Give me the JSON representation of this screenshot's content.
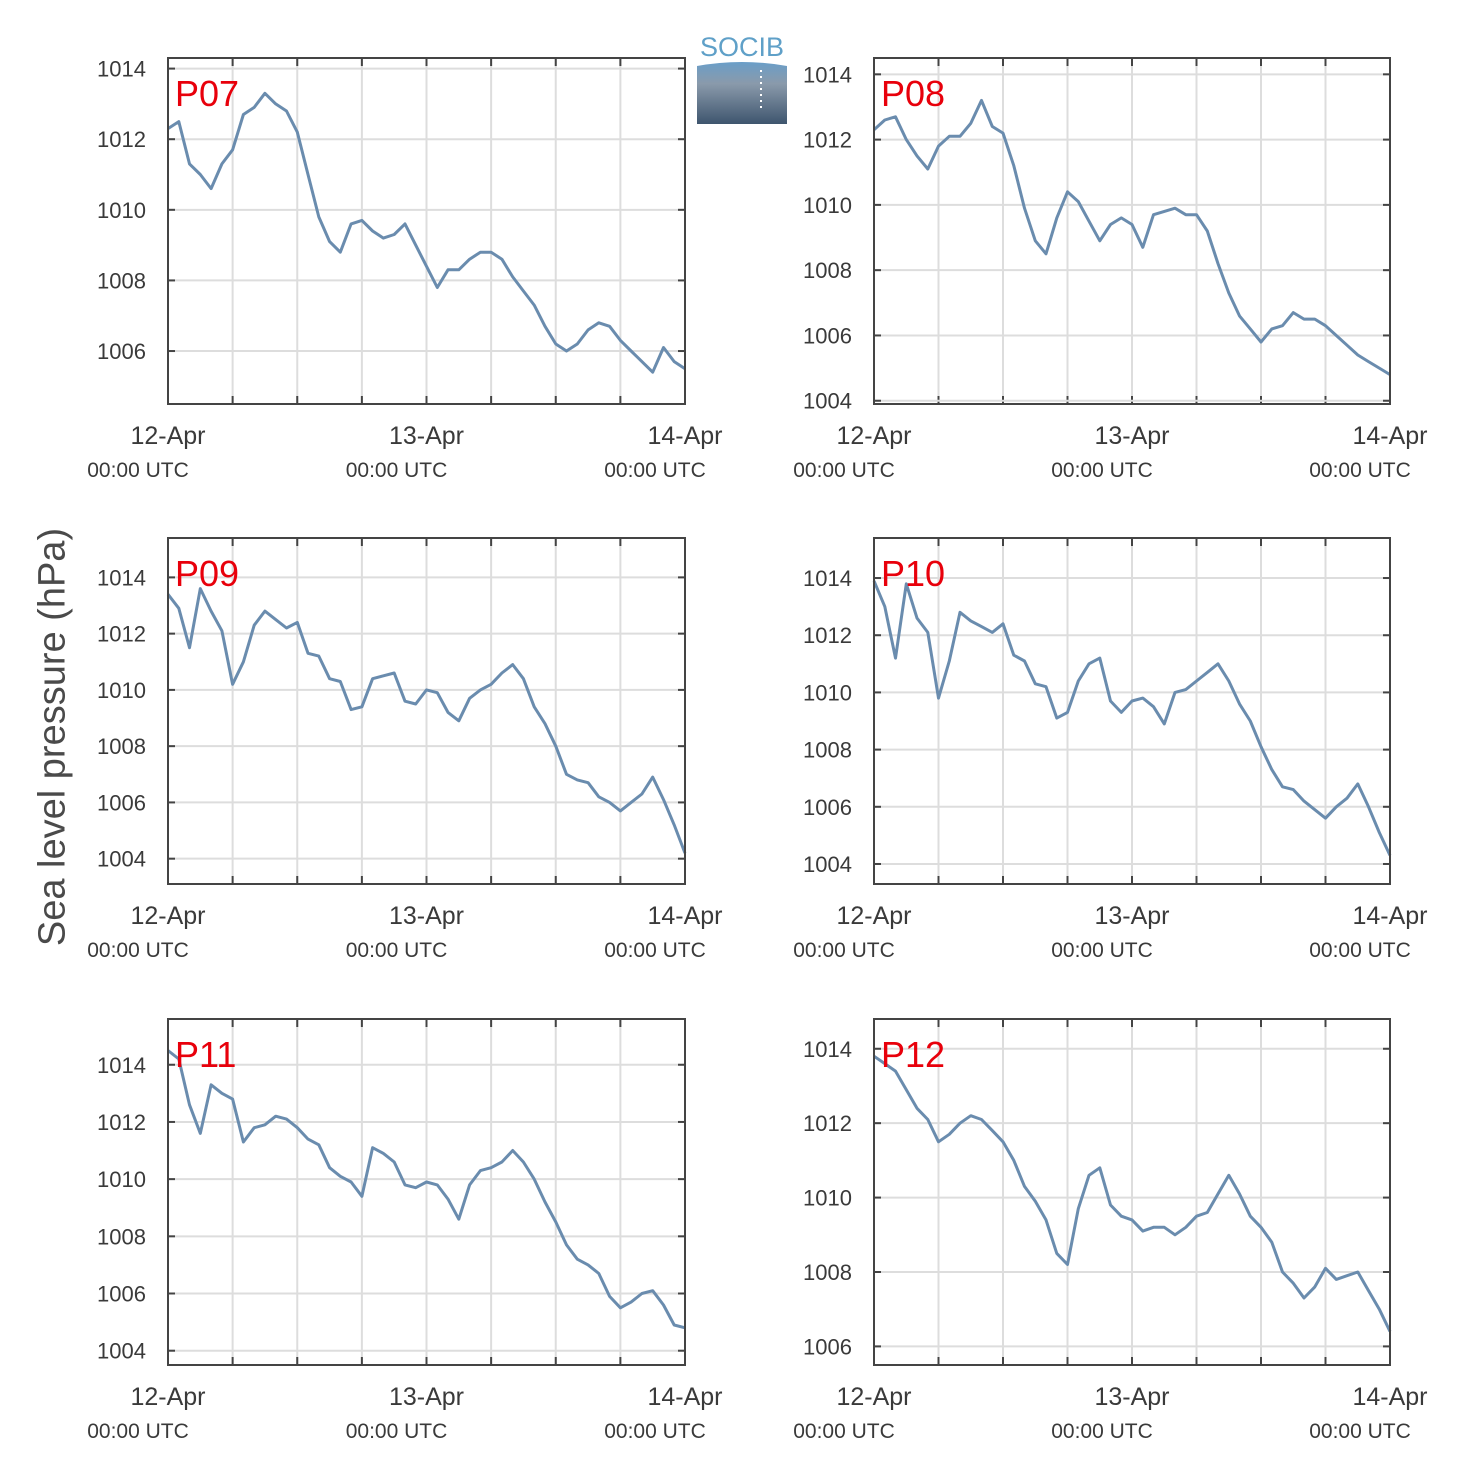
{
  "ylabel": "Sea level pressure (hPa)",
  "logo_text": "SOCIB",
  "colors": {
    "series": "#6a8cae",
    "label": "#e8000b",
    "grid": "#dddddd",
    "axis": "#444444"
  },
  "chart_data": [
    {
      "type": "line",
      "label": "P07",
      "x_ticks": [
        {
          "date": "12-Apr",
          "time": "00:00 UTC"
        },
        {
          "date": "13-Apr",
          "time": "00:00 UTC"
        },
        {
          "date": "14-Apr",
          "time": "00:00 UTC"
        }
      ],
      "ylim": [
        1004.5,
        1014.3
      ],
      "yticks": [
        1006,
        1008,
        1010,
        1012,
        1014
      ],
      "x_hours": [
        0,
        1,
        2,
        3,
        4,
        5,
        6,
        7,
        8,
        9,
        10,
        11,
        12,
        13,
        14,
        15,
        16,
        17,
        18,
        19,
        20,
        21,
        22,
        23,
        24,
        25,
        26,
        27,
        28,
        29,
        30,
        31,
        32,
        33,
        34,
        35,
        36,
        37,
        38,
        39,
        40,
        41,
        42,
        43,
        44,
        45,
        46,
        47,
        48
      ],
      "values": [
        1012.3,
        1012.5,
        1011.3,
        1011.0,
        1010.6,
        1011.3,
        1011.7,
        1012.7,
        1012.9,
        1013.3,
        1013.0,
        1012.8,
        1012.2,
        1011.0,
        1009.8,
        1009.1,
        1008.8,
        1009.6,
        1009.7,
        1009.4,
        1009.2,
        1009.3,
        1009.6,
        1009.0,
        1008.4,
        1007.8,
        1008.3,
        1008.3,
        1008.6,
        1008.8,
        1008.8,
        1008.6,
        1008.1,
        1007.7,
        1007.3,
        1006.7,
        1006.2,
        1006.0,
        1006.2,
        1006.6,
        1006.8,
        1006.7,
        1006.3,
        1006.0,
        1005.7,
        1005.4,
        1006.1,
        1005.7,
        1005.5
      ]
    },
    {
      "type": "line",
      "label": "P08",
      "x_ticks": [
        {
          "date": "12-Apr",
          "time": "00:00 UTC"
        },
        {
          "date": "13-Apr",
          "time": "00:00 UTC"
        },
        {
          "date": "14-Apr",
          "time": "00:00 UTC"
        }
      ],
      "ylim": [
        1003.9,
        1014.5
      ],
      "yticks": [
        1004,
        1006,
        1008,
        1010,
        1012,
        1014
      ],
      "x_hours": [
        0,
        1,
        2,
        3,
        4,
        5,
        6,
        7,
        8,
        9,
        10,
        11,
        12,
        13,
        14,
        15,
        16,
        17,
        18,
        19,
        20,
        21,
        22,
        23,
        24,
        25,
        26,
        27,
        28,
        29,
        30,
        31,
        32,
        33,
        34,
        35,
        36,
        37,
        38,
        39,
        40,
        41,
        42,
        43,
        44,
        45,
        46,
        47,
        48
      ],
      "values": [
        1012.3,
        1012.6,
        1012.7,
        1012.0,
        1011.5,
        1011.1,
        1011.8,
        1012.1,
        1012.1,
        1012.5,
        1013.2,
        1012.4,
        1012.2,
        1011.2,
        1009.9,
        1008.9,
        1008.5,
        1009.6,
        1010.4,
        1010.1,
        1009.5,
        1008.9,
        1009.4,
        1009.6,
        1009.4,
        1008.7,
        1009.7,
        1009.8,
        1009.9,
        1009.7,
        1009.7,
        1009.2,
        1008.2,
        1007.3,
        1006.6,
        1006.2,
        1005.8,
        1006.2,
        1006.3,
        1006.7,
        1006.5,
        1006.5,
        1006.3,
        1006.0,
        1005.7,
        1005.4,
        1005.2,
        1005.0,
        1004.8
      ]
    },
    {
      "type": "line",
      "label": "P09",
      "x_ticks": [
        {
          "date": "12-Apr",
          "time": "00:00 UTC"
        },
        {
          "date": "13-Apr",
          "time": "00:00 UTC"
        },
        {
          "date": "14-Apr",
          "time": "00:00 UTC"
        }
      ],
      "ylim": [
        1003.1,
        1015.4
      ],
      "yticks": [
        1004,
        1006,
        1008,
        1010,
        1012,
        1014
      ],
      "x_hours": [
        0,
        1,
        2,
        3,
        4,
        5,
        6,
        7,
        8,
        9,
        10,
        11,
        12,
        13,
        14,
        15,
        16,
        17,
        18,
        19,
        20,
        21,
        22,
        23,
        24,
        25,
        26,
        27,
        28,
        29,
        30,
        31,
        32,
        33,
        34,
        35,
        36,
        37,
        38,
        39,
        40,
        41,
        42,
        43,
        44,
        45,
        46,
        47,
        48
      ],
      "values": [
        1013.4,
        1012.9,
        1011.5,
        1013.6,
        1012.8,
        1012.1,
        1010.2,
        1011.0,
        1012.3,
        1012.8,
        1012.5,
        1012.2,
        1012.4,
        1011.3,
        1011.2,
        1010.4,
        1010.3,
        1009.3,
        1009.4,
        1010.4,
        1010.5,
        1010.6,
        1009.6,
        1009.5,
        1010.0,
        1009.9,
        1009.2,
        1008.9,
        1009.7,
        1010.0,
        1010.2,
        1010.6,
        1010.9,
        1010.4,
        1009.4,
        1008.8,
        1008.0,
        1007.0,
        1006.8,
        1006.7,
        1006.2,
        1006.0,
        1005.7,
        1006.0,
        1006.3,
        1006.9,
        1006.1,
        1005.2,
        1004.2
      ]
    },
    {
      "type": "line",
      "label": "P10",
      "x_ticks": [
        {
          "date": "12-Apr",
          "time": "00:00 UTC"
        },
        {
          "date": "13-Apr",
          "time": "00:00 UTC"
        },
        {
          "date": "14-Apr",
          "time": "00:00 UTC"
        }
      ],
      "ylim": [
        1003.3,
        1015.4
      ],
      "yticks": [
        1004,
        1006,
        1008,
        1010,
        1012,
        1014
      ],
      "x_hours": [
        0,
        1,
        2,
        3,
        4,
        5,
        6,
        7,
        8,
        9,
        10,
        11,
        12,
        13,
        14,
        15,
        16,
        17,
        18,
        19,
        20,
        21,
        22,
        23,
        24,
        25,
        26,
        27,
        28,
        29,
        30,
        31,
        32,
        33,
        34,
        35,
        36,
        37,
        38,
        39,
        40,
        41,
        42,
        43,
        44,
        45,
        46,
        47,
        48
      ],
      "values": [
        1013.9,
        1013.0,
        1011.2,
        1013.8,
        1012.6,
        1012.1,
        1009.8,
        1011.1,
        1012.8,
        1012.5,
        1012.3,
        1012.1,
        1012.4,
        1011.3,
        1011.1,
        1010.3,
        1010.2,
        1009.1,
        1009.3,
        1010.4,
        1011.0,
        1011.2,
        1009.7,
        1009.3,
        1009.7,
        1009.8,
        1009.5,
        1008.9,
        1010.0,
        1010.1,
        1010.4,
        1010.7,
        1011.0,
        1010.4,
        1009.6,
        1009.0,
        1008.1,
        1007.3,
        1006.7,
        1006.6,
        1006.2,
        1005.9,
        1005.6,
        1006.0,
        1006.3,
        1006.8,
        1006.0,
        1005.1,
        1004.3
      ]
    },
    {
      "type": "line",
      "label": "P11",
      "x_ticks": [
        {
          "date": "12-Apr",
          "time": "00:00 UTC"
        },
        {
          "date": "13-Apr",
          "time": "00:00 UTC"
        },
        {
          "date": "14-Apr",
          "time": "00:00 UTC"
        }
      ],
      "ylim": [
        1003.5,
        1015.6
      ],
      "yticks": [
        1004,
        1006,
        1008,
        1010,
        1012,
        1014
      ],
      "x_hours": [
        0,
        1,
        2,
        3,
        4,
        5,
        6,
        7,
        8,
        9,
        10,
        11,
        12,
        13,
        14,
        15,
        16,
        17,
        18,
        19,
        20,
        21,
        22,
        23,
        24,
        25,
        26,
        27,
        28,
        29,
        30,
        31,
        32,
        33,
        34,
        35,
        36,
        37,
        38,
        39,
        40,
        41,
        42,
        43,
        44,
        45,
        46,
        47,
        48
      ],
      "values": [
        1014.5,
        1014.2,
        1012.6,
        1011.6,
        1013.3,
        1013.0,
        1012.8,
        1011.3,
        1011.8,
        1011.9,
        1012.2,
        1012.1,
        1011.8,
        1011.4,
        1011.2,
        1010.4,
        1010.1,
        1009.9,
        1009.4,
        1011.1,
        1010.9,
        1010.6,
        1009.8,
        1009.7,
        1009.9,
        1009.8,
        1009.3,
        1008.6,
        1009.8,
        1010.3,
        1010.4,
        1010.6,
        1011.0,
        1010.6,
        1010.0,
        1009.2,
        1008.5,
        1007.7,
        1007.2,
        1007.0,
        1006.7,
        1005.9,
        1005.5,
        1005.7,
        1006.0,
        1006.1,
        1005.6,
        1004.9,
        1004.8
      ]
    },
    {
      "type": "line",
      "label": "P12",
      "x_ticks": [
        {
          "date": "12-Apr",
          "time": "00:00 UTC"
        },
        {
          "date": "13-Apr",
          "time": "00:00 UTC"
        },
        {
          "date": "14-Apr",
          "time": "00:00 UTC"
        }
      ],
      "ylim": [
        1005.5,
        1014.8
      ],
      "yticks": [
        1006,
        1008,
        1010,
        1012,
        1014
      ],
      "x_hours": [
        0,
        1,
        2,
        3,
        4,
        5,
        6,
        7,
        8,
        9,
        10,
        11,
        12,
        13,
        14,
        15,
        16,
        17,
        18,
        19,
        20,
        21,
        22,
        23,
        24,
        25,
        26,
        27,
        28,
        29,
        30,
        31,
        32,
        33,
        34,
        35,
        36,
        37,
        38,
        39,
        40,
        41,
        42,
        43,
        44,
        45,
        46,
        47,
        48
      ],
      "values": [
        1013.8,
        1013.6,
        1013.4,
        1012.9,
        1012.4,
        1012.1,
        1011.5,
        1011.7,
        1012.0,
        1012.2,
        1012.1,
        1011.8,
        1011.5,
        1011.0,
        1010.3,
        1009.9,
        1009.4,
        1008.5,
        1008.2,
        1009.7,
        1010.6,
        1010.8,
        1009.8,
        1009.5,
        1009.4,
        1009.1,
        1009.2,
        1009.2,
        1009.0,
        1009.2,
        1009.5,
        1009.6,
        1010.1,
        1010.6,
        1010.1,
        1009.5,
        1009.2,
        1008.8,
        1008.0,
        1007.7,
        1007.3,
        1007.6,
        1008.1,
        1007.8,
        1007.9,
        1008.0,
        1007.5,
        1007.0,
        1006.4
      ]
    }
  ]
}
